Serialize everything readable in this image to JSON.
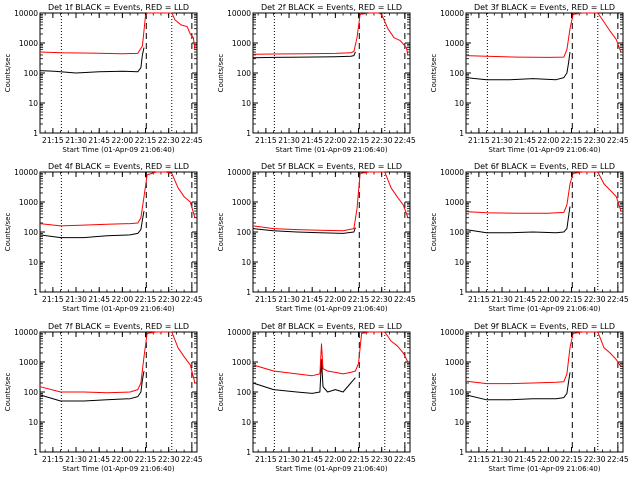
{
  "chart_data": [
    {
      "type": "line",
      "title": "Det 1f BLACK = Events, RED = LLD",
      "xlabel": "Start Time (01-Apr-09 21:06:40)",
      "ylabel": "Counts/sec",
      "y_scale": "log",
      "ylim": [
        1,
        10000
      ],
      "y_ticks": [
        "1",
        "10",
        "100",
        "1000",
        "10000"
      ],
      "x_tick_labels": [
        "21:15",
        "21:30",
        "21:45",
        "22:00",
        "22:15",
        "22:30",
        "22:45"
      ],
      "xlim": [
        "21:06:40",
        "22:48:20"
      ],
      "dotted_lines": [
        "21:20:30",
        "22:32:00"
      ],
      "dashed_lines": [
        "22:15:30",
        "22:45:00"
      ],
      "series": [
        {
          "color": "#000000",
          "x": [
            "21:06:40",
            "21:16",
            "21:30",
            "21:45",
            "22:00",
            "22:10",
            "22:12",
            "22:13",
            "22:14"
          ],
          "y": [
            120,
            115,
            100,
            110,
            115,
            110,
            150,
            400,
            700
          ]
        },
        {
          "color": "#ff0000",
          "x": [
            "21:06:40",
            "21:20",
            "21:40",
            "22:00",
            "22:10",
            "22:13",
            "22:15",
            "22:16",
            "22:17",
            "22:20",
            "22:22",
            "22:28",
            "22:32",
            "22:34",
            "22:38",
            "22:42",
            "22:44",
            "22:46",
            "22:47"
          ],
          "y": [
            500,
            470,
            460,
            440,
            450,
            800,
            8000,
            10000,
            11000,
            11000,
            10000,
            11000,
            10000,
            6000,
            4000,
            3500,
            2000,
            1500,
            600
          ]
        }
      ]
    },
    {
      "type": "line",
      "title": "Det 2f BLACK = Events, RED = LLD",
      "xlabel": "Start Time (01-Apr-09 21:06:40)",
      "ylabel": "Counts/sec",
      "y_scale": "log",
      "ylim": [
        1,
        10000
      ],
      "y_ticks": [
        "1",
        "10",
        "100",
        "1000",
        "10000"
      ],
      "x_tick_labels": [
        "21:15",
        "21:30",
        "21:45",
        "22:00",
        "22:15",
        "22:30",
        "22:45"
      ],
      "xlim": [
        "21:06:40",
        "22:48:20"
      ],
      "dotted_lines": [
        "21:20:30",
        "22:32:00"
      ],
      "dashed_lines": [
        "22:15:30",
        "22:45:00"
      ],
      "series": [
        {
          "color": "#000000",
          "x": [
            "21:06:40",
            "21:20",
            "21:40",
            "22:00",
            "22:10",
            "22:12",
            "22:13"
          ],
          "y": [
            320,
            330,
            340,
            350,
            360,
            380,
            500
          ]
        },
        {
          "color": "#ff0000",
          "x": [
            "21:06:40",
            "21:20",
            "21:40",
            "22:00",
            "22:10",
            "22:12",
            "22:14",
            "22:16",
            "22:22",
            "22:28",
            "22:30",
            "22:34",
            "22:38",
            "22:42",
            "22:46",
            "22:47"
          ],
          "y": [
            420,
            430,
            440,
            450,
            470,
            520,
            1500,
            9000,
            10000,
            11000,
            9000,
            3000,
            1500,
            1200,
            700,
            400
          ]
        }
      ]
    },
    {
      "type": "line",
      "title": "Det 3f BLACK = Events, RED = LLD",
      "xlabel": "Start Time (01-Apr-09 21:06:40)",
      "ylabel": "Counts/sec",
      "y_scale": "log",
      "ylim": [
        1,
        10000
      ],
      "y_ticks": [
        "1",
        "10",
        "100",
        "1000",
        "10000"
      ],
      "x_tick_labels": [
        "21:15",
        "21:30",
        "21:45",
        "22:00",
        "22:15",
        "22:30",
        "22:45"
      ],
      "xlim": [
        "21:06:40",
        "22:48:20"
      ],
      "dotted_lines": [
        "21:20:30",
        "22:32:00"
      ],
      "dashed_lines": [
        "22:15:30",
        "22:45:00"
      ],
      "series": [
        {
          "color": "#000000",
          "x": [
            "21:06:40",
            "21:20",
            "21:35",
            "21:50",
            "22:05",
            "22:10",
            "22:12",
            "22:13",
            "22:14"
          ],
          "y": [
            70,
            60,
            60,
            65,
            60,
            70,
            100,
            200,
            500
          ]
        },
        {
          "color": "#ff0000",
          "x": [
            "21:06:40",
            "21:20",
            "21:40",
            "22:00",
            "22:10",
            "22:12",
            "22:14",
            "22:16",
            "22:22",
            "22:28",
            "22:32",
            "22:36",
            "22:40",
            "22:44",
            "22:47"
          ],
          "y": [
            380,
            360,
            340,
            330,
            340,
            600,
            3000,
            9000,
            11000,
            10000,
            11000,
            5000,
            2500,
            1300,
            500
          ]
        }
      ]
    },
    {
      "type": "line",
      "title": "Det 4f BLACK = Events, RED = LLD",
      "xlabel": "Start Time (01-Apr-09 21:06:40)",
      "ylabel": "Counts/sec",
      "y_scale": "log",
      "ylim": [
        1,
        10000
      ],
      "y_ticks": [
        "1",
        "10",
        "100",
        "1000",
        "10000"
      ],
      "x_tick_labels": [
        "21:15",
        "21:30",
        "21:45",
        "22:00",
        "22:15",
        "22:30",
        "22:45"
      ],
      "xlim": [
        "21:06:40",
        "22:48:20"
      ],
      "dotted_lines": [
        "21:20:30",
        "22:32:00"
      ],
      "dashed_lines": [
        "22:15:30",
        "22:45:00"
      ],
      "series": [
        {
          "color": "#000000",
          "x": [
            "21:06:40",
            "21:20",
            "21:35",
            "21:50",
            "22:05",
            "22:10",
            "22:12",
            "22:13",
            "22:14"
          ],
          "y": [
            80,
            65,
            65,
            75,
            80,
            90,
            120,
            250,
            500
          ]
        },
        {
          "color": "#ff0000",
          "x": [
            "21:06:40",
            "21:20",
            "21:35",
            "21:50",
            "22:05",
            "22:10",
            "22:12",
            "22:14",
            "22:16",
            "22:22",
            "22:28",
            "22:32",
            "22:36",
            "22:40",
            "22:44",
            "22:47"
          ],
          "y": [
            190,
            160,
            170,
            180,
            190,
            200,
            300,
            1500,
            8000,
            10000,
            11000,
            9000,
            3000,
            1500,
            1000,
            300
          ]
        }
      ]
    },
    {
      "type": "line",
      "title": "Det 5f BLACK = Events, RED = LLD",
      "xlabel": "Start Time (01-Apr-09 21:06:40)",
      "ylabel": "Counts/sec",
      "y_scale": "log",
      "ylim": [
        1,
        10000
      ],
      "y_ticks": [
        "1",
        "10",
        "100",
        "1000",
        "10000"
      ],
      "x_tick_labels": [
        "21:15",
        "21:30",
        "21:45",
        "22:00",
        "22:15",
        "22:30",
        "22:45"
      ],
      "xlim": [
        "21:06:40",
        "22:48:20"
      ],
      "dotted_lines": [
        "21:20:30",
        "22:32:00"
      ],
      "dashed_lines": [
        "22:15:30",
        "22:45:00"
      ],
      "series": [
        {
          "color": "#000000",
          "x": [
            "21:06:40",
            "21:20",
            "21:35",
            "21:50",
            "22:05",
            "22:12",
            "22:13"
          ],
          "y": [
            130,
            110,
            100,
            95,
            90,
            100,
            140
          ]
        },
        {
          "color": "#ff0000",
          "x": [
            "21:06:40",
            "21:20",
            "21:35",
            "21:50",
            "22:05",
            "22:12",
            "22:14",
            "22:16",
            "22:22",
            "22:28",
            "22:32",
            "22:36",
            "22:40",
            "22:44",
            "22:47"
          ],
          "y": [
            160,
            130,
            120,
            115,
            110,
            130,
            600,
            9000,
            11000,
            10000,
            11000,
            3000,
            1500,
            800,
            300
          ]
        }
      ]
    },
    {
      "type": "line",
      "title": "Det 6f BLACK = Events, RED = LLD",
      "xlabel": "Start Time (01-Apr-09 21:06:40)",
      "ylabel": "Counts/sec",
      "y_scale": "log",
      "ylim": [
        1,
        10000
      ],
      "y_ticks": [
        "1",
        "10",
        "100",
        "1000",
        "10000"
      ],
      "x_tick_labels": [
        "21:15",
        "21:30",
        "21:45",
        "22:00",
        "22:15",
        "22:30",
        "22:45"
      ],
      "xlim": [
        "21:06:40",
        "22:48:20"
      ],
      "dotted_lines": [
        "21:20:30",
        "22:32:00"
      ],
      "dashed_lines": [
        "22:15:30",
        "22:45:00"
      ],
      "series": [
        {
          "color": "#000000",
          "x": [
            "21:06:40",
            "21:20",
            "21:35",
            "21:50",
            "22:05",
            "22:10",
            "22:12",
            "22:13",
            "22:14"
          ],
          "y": [
            120,
            95,
            95,
            100,
            95,
            100,
            130,
            300,
            700
          ]
        },
        {
          "color": "#ff0000",
          "x": [
            "21:06:40",
            "21:20",
            "21:40",
            "22:00",
            "22:10",
            "22:12",
            "22:14",
            "22:16",
            "22:22",
            "22:28",
            "22:32",
            "22:36",
            "22:40",
            "22:44",
            "22:47"
          ],
          "y": [
            480,
            440,
            420,
            420,
            450,
            800,
            4000,
            9000,
            11000,
            10000,
            11000,
            4000,
            2500,
            1500,
            500
          ]
        }
      ]
    },
    {
      "type": "line",
      "title": "Det 7f BLACK = Events, RED = LLD",
      "xlabel": "Start Time (01-Apr-09 21:06:40)",
      "ylabel": "Counts/sec",
      "y_scale": "log",
      "ylim": [
        1,
        10000
      ],
      "y_ticks": [
        "1",
        "10",
        "100",
        "1000",
        "10000"
      ],
      "x_tick_labels": [
        "21:15",
        "21:30",
        "21:45",
        "22:00",
        "22:15",
        "22:30",
        "22:45"
      ],
      "xlim": [
        "21:06:40",
        "22:48:20"
      ],
      "dotted_lines": [
        "21:20:30",
        "22:32:00"
      ],
      "dashed_lines": [
        "22:15:30",
        "22:45:00"
      ],
      "series": [
        {
          "color": "#000000",
          "x": [
            "21:06:40",
            "21:20",
            "21:35",
            "21:50",
            "22:05",
            "22:10",
            "22:12",
            "22:13",
            "22:14"
          ],
          "y": [
            80,
            50,
            50,
            55,
            60,
            70,
            100,
            250,
            500
          ]
        },
        {
          "color": "#ff0000",
          "x": [
            "21:06:40",
            "21:20",
            "21:35",
            "21:50",
            "22:05",
            "22:10",
            "22:12",
            "22:14",
            "22:16",
            "22:22",
            "22:28",
            "22:32",
            "22:36",
            "22:40",
            "22:44",
            "22:47"
          ],
          "y": [
            150,
            100,
            100,
            95,
            100,
            120,
            200,
            1500,
            9000,
            11000,
            10000,
            11000,
            3000,
            1500,
            800,
            200
          ]
        }
      ]
    },
    {
      "type": "line",
      "title": "Det 8f BLACK = Events, RED = LLD",
      "xlabel": "Start Time (01-Apr-09 21:06:40)",
      "ylabel": "Counts/sec",
      "y_scale": "log",
      "ylim": [
        1,
        10000
      ],
      "y_ticks": [
        "1",
        "10",
        "100",
        "1000",
        "10000"
      ],
      "x_tick_labels": [
        "21:15",
        "21:30",
        "21:45",
        "22:00",
        "22:15",
        "22:30",
        "22:45"
      ],
      "xlim": [
        "21:06:40",
        "22:48:20"
      ],
      "dotted_lines": [
        "21:20:30",
        "22:32:00"
      ],
      "dashed_lines": [
        "22:15:30",
        "22:45:00"
      ],
      "series": [
        {
          "color": "#000000",
          "x": [
            "21:06:40",
            "21:20",
            "21:35",
            "21:45",
            "21:50",
            "21:51",
            "21:52",
            "21:55",
            "22:00",
            "22:05",
            "22:10",
            "22:13"
          ],
          "y": [
            200,
            120,
            100,
            90,
            100,
            1200,
            150,
            100,
            120,
            100,
            200,
            300
          ]
        },
        {
          "color": "#ff0000",
          "x": [
            "21:06:40",
            "21:20",
            "21:35",
            "21:45",
            "21:50",
            "21:51",
            "21:52",
            "21:55",
            "22:00",
            "22:05",
            "22:10",
            "22:13",
            "22:15",
            "22:17",
            "22:22",
            "22:28",
            "22:32",
            "22:36",
            "22:40",
            "22:44",
            "22:47"
          ],
          "y": [
            800,
            500,
            400,
            350,
            400,
            4000,
            600,
            500,
            450,
            400,
            450,
            500,
            900,
            9000,
            11000,
            10000,
            11000,
            5000,
            3500,
            2000,
            1000
          ]
        }
      ]
    },
    {
      "type": "line",
      "title": "Det 9f BLACK = Events, RED = LLD",
      "xlabel": "Start Time (01-Apr-09 21:06:40)",
      "ylabel": "Counts/sec",
      "y_scale": "log",
      "ylim": [
        1,
        10000
      ],
      "y_ticks": [
        "1",
        "10",
        "100",
        "1000",
        "10000"
      ],
      "x_tick_labels": [
        "21:15",
        "21:30",
        "21:45",
        "22:00",
        "22:15",
        "22:30",
        "22:45"
      ],
      "xlim": [
        "21:06:40",
        "22:48:20"
      ],
      "dotted_lines": [
        "21:20:30",
        "22:32:00"
      ],
      "dashed_lines": [
        "22:15:30",
        "22:45:00"
      ],
      "series": [
        {
          "color": "#000000",
          "x": [
            "21:06:40",
            "21:20",
            "21:35",
            "21:50",
            "22:05",
            "22:10",
            "22:12",
            "22:13",
            "22:14"
          ],
          "y": [
            80,
            55,
            55,
            60,
            60,
            65,
            90,
            200,
            450
          ]
        },
        {
          "color": "#ff0000",
          "x": [
            "21:06:40",
            "21:20",
            "21:35",
            "21:50",
            "22:05",
            "22:10",
            "22:12",
            "22:14",
            "22:16",
            "22:22",
            "22:28",
            "22:32",
            "22:36",
            "22:40",
            "22:44",
            "22:47"
          ],
          "y": [
            230,
            190,
            190,
            200,
            210,
            220,
            400,
            3000,
            9000,
            11000,
            10000,
            11000,
            3000,
            2000,
            1200,
            700
          ]
        }
      ]
    }
  ]
}
